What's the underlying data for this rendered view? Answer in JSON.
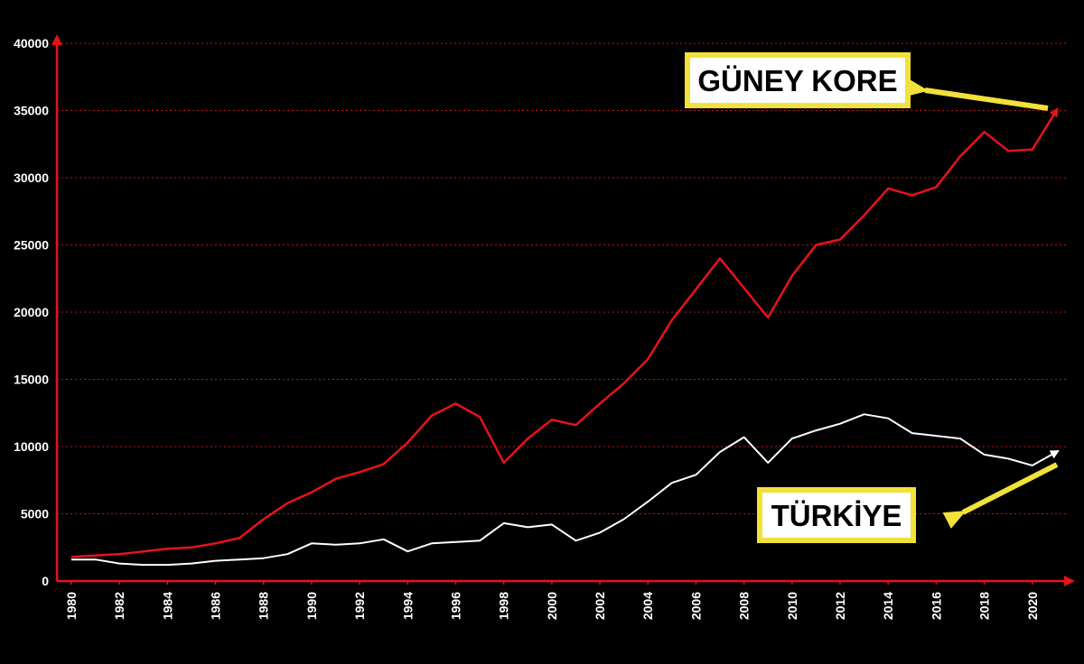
{
  "chart_data": {
    "type": "line",
    "x": [
      1980,
      1981,
      1982,
      1983,
      1984,
      1985,
      1986,
      1987,
      1988,
      1989,
      1990,
      1991,
      1992,
      1993,
      1994,
      1995,
      1996,
      1997,
      1998,
      1999,
      2000,
      2001,
      2002,
      2003,
      2004,
      2005,
      2006,
      2007,
      2008,
      2009,
      2010,
      2011,
      2012,
      2013,
      2014,
      2015,
      2016,
      2017,
      2018,
      2019,
      2020,
      2021
    ],
    "xlim": [
      1979.4,
      2021.4
    ],
    "xticks": [
      1980,
      1982,
      1984,
      1986,
      1988,
      1990,
      1992,
      1994,
      1996,
      1998,
      2000,
      2002,
      2004,
      2006,
      2008,
      2010,
      2012,
      2014,
      2016,
      2018,
      2020
    ],
    "ylim": [
      0,
      40000
    ],
    "yticks": [
      0,
      5000,
      10000,
      15000,
      20000,
      25000,
      30000,
      35000,
      40000
    ],
    "grid": true,
    "series": [
      {
        "name": "GÜNEY KORE",
        "color": "#e8121a",
        "values": [
          1800,
          1900,
          2000,
          2200,
          2400,
          2500,
          2800,
          3200,
          4600,
          5800,
          6600,
          7600,
          8100,
          8700,
          10300,
          12300,
          13200,
          12200,
          8800,
          10600,
          12000,
          11600,
          13200,
          14700,
          16500,
          19400,
          21700,
          24000,
          21800,
          19600,
          22700,
          25000,
          25400,
          27200,
          29200,
          28700,
          29300,
          31600,
          33400,
          32000,
          32100,
          35000
        ]
      },
      {
        "name": "TÜRKİYE",
        "color": "#ffffff",
        "values": [
          1600,
          1600,
          1300,
          1200,
          1200,
          1300,
          1500,
          1600,
          1700,
          2000,
          2800,
          2700,
          2800,
          3100,
          2200,
          2800,
          2900,
          3000,
          4300,
          4000,
          4200,
          3000,
          3600,
          4600,
          5900,
          7300,
          7900,
          9600,
          10700,
          8800,
          10600,
          11200,
          11700,
          12400,
          12100,
          11000,
          10800,
          10600,
          9400,
          9100,
          8600,
          9600
        ]
      }
    ]
  }
}
